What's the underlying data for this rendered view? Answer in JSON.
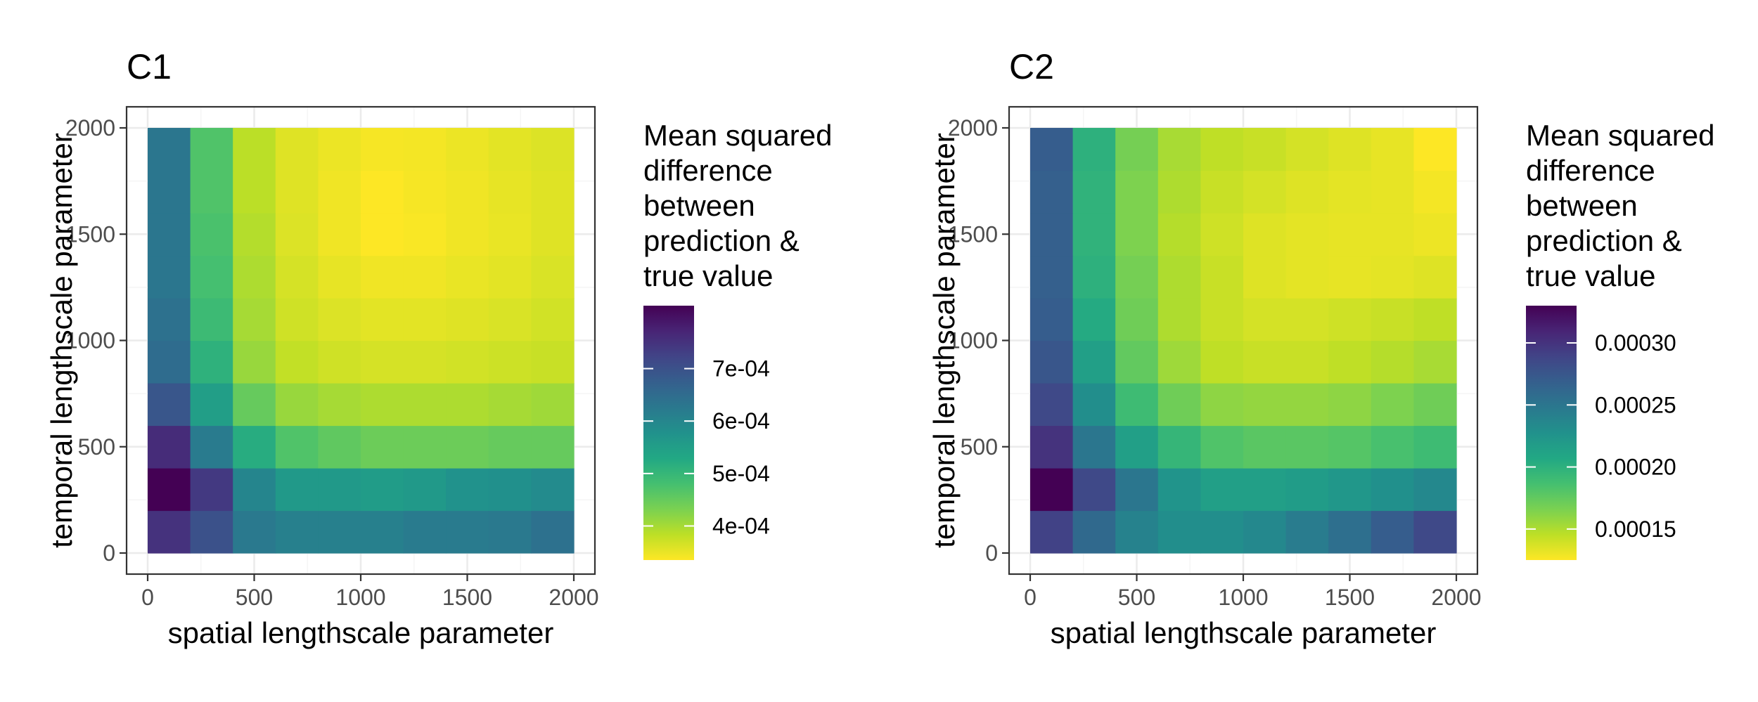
{
  "chart_data": [
    {
      "type": "heatmap",
      "title": "C1",
      "xlabel": "spatial lengthscale parameter",
      "ylabel": "temporal lengthscale parameter",
      "xlim": [
        0,
        2000
      ],
      "ylim": [
        0,
        2000
      ],
      "x_ticks": [
        "0",
        "500",
        "1000",
        "1500",
        "2000"
      ],
      "y_ticks": [
        "0",
        "500",
        "1000",
        "1500",
        "2000"
      ],
      "x_bins": [
        [
          0,
          200
        ],
        [
          200,
          400
        ],
        [
          400,
          600
        ],
        [
          600,
          800
        ],
        [
          800,
          1000
        ],
        [
          1000,
          1200
        ],
        [
          1200,
          1400
        ],
        [
          1400,
          1600
        ],
        [
          1600,
          1800
        ],
        [
          1800,
          2000
        ]
      ],
      "y_bins": [
        [
          0,
          200
        ],
        [
          200,
          400
        ],
        [
          400,
          600
        ],
        [
          600,
          800
        ],
        [
          800,
          1000
        ],
        [
          1000,
          1200
        ],
        [
          1200,
          1400
        ],
        [
          1400,
          1600
        ],
        [
          1600,
          1800
        ],
        [
          1800,
          2000
        ]
      ],
      "values": [
        [
          0.00075,
          0.0007,
          0.000625,
          0.00061,
          0.00061,
          0.00061,
          0.00062,
          0.00062,
          0.000625,
          0.00064
        ],
        [
          0.00082,
          0.00074,
          0.0006,
          0.00056,
          0.00056,
          0.000555,
          0.00056,
          0.000575,
          0.00058,
          0.00059
        ],
        [
          0.00076,
          0.00062,
          0.00052,
          0.00047,
          0.000455,
          0.000445,
          0.000445,
          0.000445,
          0.00045,
          0.00045
        ],
        [
          0.00069,
          0.00055,
          0.00045,
          0.00041,
          0.0004,
          0.000395,
          0.000395,
          0.000395,
          0.0004,
          0.000405
        ],
        [
          0.00065,
          0.00051,
          0.00041,
          0.00038,
          0.00037,
          0.000365,
          0.000365,
          0.000368,
          0.000372,
          0.000375
        ],
        [
          0.00064,
          0.00049,
          0.0004,
          0.00037,
          0.00036,
          0.000355,
          0.000355,
          0.000358,
          0.000362,
          0.000368
        ],
        [
          0.00063,
          0.00048,
          0.000395,
          0.000365,
          0.000352,
          0.000345,
          0.000345,
          0.00035,
          0.000355,
          0.000362
        ],
        [
          0.00063,
          0.000475,
          0.00039,
          0.00036,
          0.000345,
          0.000335,
          0.000338,
          0.000345,
          0.00035,
          0.000358
        ],
        [
          0.00063,
          0.00047,
          0.000385,
          0.000358,
          0.000345,
          0.000335,
          0.00034,
          0.000345,
          0.000352,
          0.000358
        ],
        [
          0.00063,
          0.00047,
          0.000385,
          0.000358,
          0.000348,
          0.00034,
          0.000342,
          0.000348,
          0.000355,
          0.00036
        ]
      ],
      "color_range": [
        0.000335,
        0.00082
      ],
      "colormap": "viridis-reversed",
      "legend": {
        "title": "Mean squared difference between prediction & true value",
        "title_lines": [
          "Mean squared",
          "difference",
          "between",
          "prediction &",
          "true value"
        ],
        "ticks": [
          {
            "value": 0.0004,
            "label": "4e-04"
          },
          {
            "value": 0.0005,
            "label": "5e-04"
          },
          {
            "value": 0.0006,
            "label": "6e-04"
          },
          {
            "value": 0.0007,
            "label": "7e-04"
          }
        ],
        "position": "right"
      },
      "grid": true
    },
    {
      "type": "heatmap",
      "title": "C2",
      "xlabel": "spatial lengthscale parameter",
      "ylabel": "temporal lengthscale parameter",
      "xlim": [
        0,
        2000
      ],
      "ylim": [
        0,
        2000
      ],
      "x_ticks": [
        "0",
        "500",
        "1000",
        "1500",
        "2000"
      ],
      "y_ticks": [
        "0",
        "500",
        "1000",
        "1500",
        "2000"
      ],
      "x_bins": [
        [
          0,
          200
        ],
        [
          200,
          400
        ],
        [
          400,
          600
        ],
        [
          600,
          800
        ],
        [
          800,
          1000
        ],
        [
          1000,
          1200
        ],
        [
          1200,
          1400
        ],
        [
          1400,
          1600
        ],
        [
          1600,
          1800
        ],
        [
          1800,
          2000
        ]
      ],
      "y_bins": [
        [
          0,
          200
        ],
        [
          200,
          400
        ],
        [
          400,
          600
        ],
        [
          600,
          800
        ],
        [
          800,
          1000
        ],
        [
          1000,
          1200
        ],
        [
          1200,
          1400
        ],
        [
          1400,
          1600
        ],
        [
          1600,
          1800
        ],
        [
          1800,
          2000
        ]
      ],
      "values": [
        [
          0.00029,
          0.00026,
          0.00024,
          0.00023,
          0.00023,
          0.000235,
          0.000245,
          0.000255,
          0.00027,
          0.000285
        ],
        [
          0.00033,
          0.000285,
          0.00025,
          0.000225,
          0.000215,
          0.000215,
          0.000218,
          0.000222,
          0.000228,
          0.000235
        ],
        [
          0.0003,
          0.00025,
          0.000215,
          0.000195,
          0.000182,
          0.000178,
          0.000178,
          0.00018,
          0.000185,
          0.00019
        ],
        [
          0.000285,
          0.00023,
          0.00019,
          0.00017,
          0.00016,
          0.000158,
          0.000158,
          0.00016,
          0.000165,
          0.00017
        ],
        [
          0.000275,
          0.000215,
          0.000175,
          0.000155,
          0.000145,
          0.000142,
          0.000142,
          0.000145,
          0.000148,
          0.000152
        ],
        [
          0.00027,
          0.000205,
          0.00017,
          0.00015,
          0.000142,
          0.000138,
          0.000138,
          0.00014,
          0.000142,
          0.000145
        ],
        [
          0.000268,
          0.0002,
          0.000168,
          0.00015,
          0.000142,
          0.000135,
          0.000133,
          0.000132,
          0.000133,
          0.000135
        ],
        [
          0.000268,
          0.000198,
          0.000165,
          0.000148,
          0.00014,
          0.000135,
          0.000133,
          0.000132,
          0.000132,
          0.00013
        ],
        [
          0.000268,
          0.000198,
          0.000165,
          0.00015,
          0.000142,
          0.000138,
          0.000135,
          0.000133,
          0.000132,
          0.000128
        ],
        [
          0.00027,
          0.0002,
          0.000168,
          0.000152,
          0.000145,
          0.000142,
          0.000138,
          0.000135,
          0.000132,
          0.000125
        ]
      ],
      "color_range": [
        0.000125,
        0.00033
      ],
      "colormap": "viridis-reversed",
      "legend": {
        "title": "Mean squared difference between prediction & true value",
        "title_lines": [
          "Mean squared",
          "difference",
          "between",
          "prediction &",
          "true value"
        ],
        "ticks": [
          {
            "value": 0.00015,
            "label": "0.00015"
          },
          {
            "value": 0.0002,
            "label": "0.00020"
          },
          {
            "value": 0.00025,
            "label": "0.00025"
          },
          {
            "value": 0.0003,
            "label": "0.00030"
          }
        ],
        "position": "right"
      },
      "grid": true
    }
  ]
}
